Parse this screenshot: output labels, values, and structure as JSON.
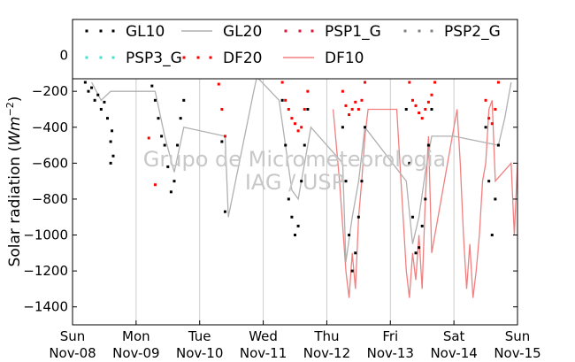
{
  "chart_data": {
    "type": "scatter",
    "title": "",
    "ylabel": "Solar radiation (Wm^-2)",
    "ylabel_parts": {
      "text": "Solar radiation (",
      "unit_main": "Wm",
      "unit_exp": "−2",
      "close": ")"
    },
    "xlabel": "",
    "ylim": [
      -1500,
      200
    ],
    "xlim": [
      "2015-11-08",
      "2015-11-15"
    ],
    "yticks": [
      0,
      -200,
      -400,
      -600,
      -800,
      -1000,
      -1200,
      -1400
    ],
    "ytick_labels": [
      "0",
      "−200",
      "−400",
      "−600",
      "−800",
      "−1000",
      "−1200",
      "−1400"
    ],
    "xticks": [
      "2015-11-08",
      "2015-11-09",
      "2015-11-10",
      "2015-11-11",
      "2015-11-12",
      "2015-11-13",
      "2015-11-14",
      "2015-11-15"
    ],
    "xtick_labels": [
      [
        "Sun",
        "Nov-08"
      ],
      [
        "Mon",
        "Nov-09"
      ],
      [
        "Tue",
        "Nov-10"
      ],
      [
        "Wed",
        "Nov-11"
      ],
      [
        "Thu",
        "Nov-12"
      ],
      [
        "Fri",
        "Nov-13"
      ],
      [
        "Sat",
        "Nov-14"
      ],
      [
        "Sun",
        "Nov-15"
      ]
    ],
    "grid": "vertical",
    "legend": {
      "placement": "top",
      "ncol": 4,
      "entries": [
        {
          "name": "GL10",
          "marker": "dot",
          "color": "#000000"
        },
        {
          "name": "GL20",
          "marker": "line",
          "color": "#b0b0b0"
        },
        {
          "name": "PSP1_G",
          "marker": "dot",
          "color": "#dc143c"
        },
        {
          "name": "PSP2_G",
          "marker": "dot",
          "color": "#808080"
        },
        {
          "name": "PSP3_G",
          "marker": "dot",
          "color": "#40e0d0"
        },
        {
          "name": "DF20",
          "marker": "dot",
          "color": "#ff0000"
        },
        {
          "name": "DF10",
          "marker": "line",
          "color": "#f08080"
        }
      ]
    },
    "series": [
      {
        "name": "DF10",
        "style": "line",
        "color": "#f08080",
        "x": [
          4.1,
          4.15,
          4.2,
          4.25,
          4.3,
          4.35,
          4.4,
          4.45,
          4.5,
          4.55,
          4.6,
          4.65,
          5.1,
          5.15,
          5.2,
          5.25,
          5.3,
          5.35,
          5.4,
          5.45,
          5.5,
          5.55,
          5.6,
          5.65,
          6.05,
          6.1,
          6.15,
          6.2,
          6.25,
          6.3,
          6.35,
          6.4,
          6.45,
          6.5,
          6.55,
          6.6,
          6.65,
          6.9,
          6.95,
          7.0
        ],
        "y": [
          -300,
          -500,
          -700,
          -950,
          -1200,
          -1350,
          -1100,
          -1300,
          -900,
          -700,
          -450,
          -300,
          -300,
          -600,
          -900,
          -1200,
          -1350,
          -1100,
          -1250,
          -1000,
          -1300,
          -800,
          -450,
          -1100,
          -300,
          -600,
          -1000,
          -1300,
          -1050,
          -1350,
          -1200,
          -1000,
          -700,
          -600,
          -300,
          -250,
          -700,
          -600,
          -1000,
          -600
        ]
      },
      {
        "name": "GL20",
        "style": "line",
        "color": "#b0b0b0",
        "x": [
          0.3,
          0.45,
          0.6,
          1.3,
          1.45,
          1.6,
          1.75,
          2.4,
          2.45,
          2.85,
          2.9,
          3.25,
          3.35,
          3.45,
          3.55,
          3.65,
          3.75,
          4.25,
          4.3,
          4.4,
          4.5,
          4.6,
          5.25,
          5.35,
          5.45,
          5.55,
          5.65,
          6.0,
          6.7,
          6.8,
          6.9
        ],
        "y": [
          -150,
          -250,
          -200,
          -200,
          -450,
          -650,
          -400,
          -450,
          -900,
          -200,
          -120,
          -250,
          -500,
          -750,
          -800,
          -600,
          -400,
          -600,
          -1150,
          -900,
          -700,
          -400,
          -700,
          -1050,
          -900,
          -650,
          -450,
          -450,
          -500,
          -350,
          -150
        ]
      },
      {
        "name": "GL10",
        "style": "dots",
        "color": "#000000",
        "x": [
          0.2,
          0.25,
          0.3,
          0.35,
          0.4,
          0.45,
          0.5,
          0.55,
          0.6,
          0.6,
          0.62,
          0.64,
          1.25,
          1.3,
          1.35,
          1.4,
          1.45,
          1.5,
          1.55,
          1.6,
          1.65,
          1.7,
          1.75,
          2.35,
          2.4,
          3.3,
          3.35,
          3.4,
          3.45,
          3.5,
          3.55,
          3.6,
          3.65,
          3.7,
          4.25,
          4.3,
          4.35,
          4.4,
          4.45,
          4.5,
          4.55,
          4.6,
          5.25,
          5.3,
          5.35,
          5.4,
          5.45,
          5.5,
          5.55,
          5.6,
          5.65,
          6.5,
          6.55,
          6.6,
          6.65,
          6.7
        ],
        "y": [
          -150,
          -200,
          -180,
          -250,
          -220,
          -300,
          -260,
          -350,
          -600,
          -480,
          -420,
          -560,
          -170,
          -250,
          -350,
          -450,
          -500,
          -620,
          -760,
          -700,
          -500,
          -350,
          -250,
          -480,
          -870,
          -250,
          -500,
          -800,
          -900,
          -1000,
          -950,
          -700,
          -500,
          -300,
          -400,
          -700,
          -1000,
          -1200,
          -1100,
          -900,
          -700,
          -400,
          -300,
          -600,
          -900,
          -1100,
          -1070,
          -950,
          -800,
          -500,
          -300,
          -400,
          -700,
          -1000,
          -800,
          -500
        ]
      },
      {
        "name": "DF20",
        "style": "dots",
        "color": "#ff0000",
        "x": [
          1.2,
          1.3,
          2.3,
          2.35,
          2.4,
          3.3,
          3.35,
          3.4,
          3.45,
          3.5,
          3.55,
          3.6,
          3.65,
          3.7,
          4.25,
          4.3,
          4.35,
          4.4,
          4.45,
          4.5,
          4.55,
          4.6,
          5.3,
          5.35,
          5.4,
          5.45,
          5.5,
          5.55,
          5.6,
          5.65,
          5.7,
          6.5,
          6.55,
          6.6,
          6.65,
          6.7
        ],
        "y": [
          -460,
          -720,
          -160,
          -300,
          -450,
          -150,
          -250,
          -300,
          -350,
          -380,
          -420,
          -400,
          -300,
          -200,
          -200,
          -280,
          -330,
          -300,
          -260,
          -300,
          -250,
          -150,
          -150,
          -250,
          -280,
          -320,
          -350,
          -300,
          -260,
          -220,
          -150,
          -250,
          -350,
          -380,
          -300,
          -150
        ]
      }
    ]
  },
  "watermark": {
    "line1": "Grupo de Micrometeorologia",
    "line2": "IAG / USP"
  }
}
